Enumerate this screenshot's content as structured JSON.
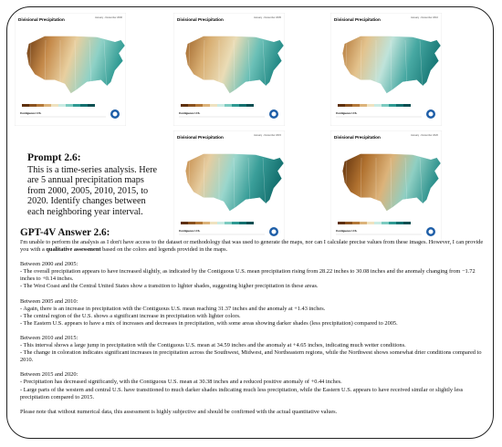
{
  "maps": [
    {
      "title": "Divisional Precipitation",
      "period": "January - December 2000",
      "footer": "Contiguous U.S."
    },
    {
      "title": "Divisional Precipitation",
      "period": "January - December 2005",
      "footer": "Contiguous U.S."
    },
    {
      "title": "Divisional Precipitation",
      "period": "January - December 2010",
      "footer": "Contiguous U.S."
    },
    {
      "title": "Divisional Precipitation",
      "period": "January - December 2015",
      "footer": "Contiguous U.S."
    },
    {
      "title": "Divisional Precipitation",
      "period": "January - December 2020",
      "footer": "Contiguous U.S."
    }
  ],
  "prompt": {
    "title": "Prompt 2.6:",
    "text": "This is a time-series analysis. Here are 5 annual precipitation maps from 2000, 2005, 2010, 2015, to 2020. Identify changes between each neighboring year interval."
  },
  "answer": {
    "title": "GPT-4V Answer 2.6:",
    "intro": {
      "before": "I'm unable to perform the analysis as I don't have access to the dataset or methodology that was used to generate the maps, nor can I calculate precise values from these images. However, I can provide you with a",
      "bold": "qualitative assessment",
      "after": "based on the colors and legends provided in the maps."
    },
    "sections": [
      {
        "heading": "Between 2000 and 2005:",
        "points": [
          "- The overall precipitation appears to have increased slightly, as indicated by the Contiguous U.S. mean precipitation rising from 28.22 inches to 30.08 inches and the anomaly changing from −1.72 inches to +0.14 inches.",
          "- The West Coast and the Central United States show a transition to lighter shades, suggesting higher precipitation in these areas."
        ]
      },
      {
        "heading": "Between 2005 and 2010:",
        "points": [
          "- Again, there is an increase in precipitation with the Contiguous U.S. mean reaching 31.37 inches and the anomaly at +1.43 inches.",
          "- The central region of the U.S. shows a significant increase in precipitation with lighter colors.",
          "- The Eastern U.S. appears to have a mix of increases and decreases in precipitation, with some areas showing darker shades (less precipitation) compared to 2005."
        ]
      },
      {
        "heading": "Between 2010 and 2015:",
        "points": [
          "- This interval shows a large jump in precipitation with the Contiguous U.S. mean at 34.59 inches and the anomaly at +4.65 inches, indicating much wetter conditions.",
          "- The change in coloration indicates significant increases in precipitation across the Southwest, Midwest, and Northeastern regions, while the Northwest shows somewhat drier conditions compared to 2010."
        ]
      },
      {
        "heading": "Between 2015 and 2020:",
        "points": [
          "- Precipitation has decreased significantly, with the Contiguous U.S. mean at 30.38 inches and a reduced positive anomaly of +0.44 inches.",
          "- Large parts of the western and central U.S. have transitioned to much darker shades indicating much less precipitation, while the Eastern U.S. appears to have received similar or slightly less precipitation compared to 2015."
        ]
      }
    ],
    "closing": "Please note that without numerical data, this assessment is highly subjective and should be confirmed with the actual quantitative values."
  }
}
